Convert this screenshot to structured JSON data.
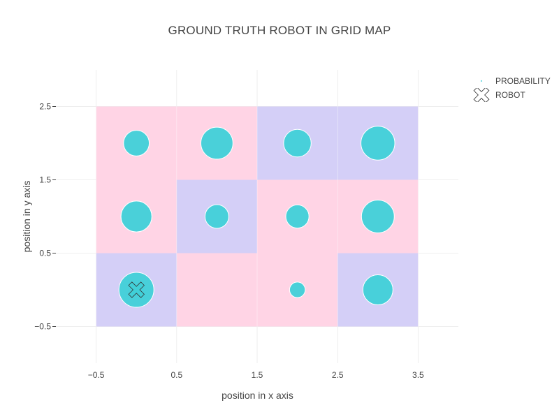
{
  "chart_data": {
    "type": "scatter",
    "title": "GROUND TRUTH ROBOT IN GRID MAP",
    "xlabel": "position in x axis",
    "ylabel": "position in y axis",
    "xlim": [
      -1,
      4
    ],
    "ylim": [
      -1,
      3
    ],
    "xticks": [
      "−0.5",
      "0.5",
      "1.5",
      "2.5",
      "3.5"
    ],
    "xtick_values": [
      -0.5,
      0.5,
      1.5,
      2.5,
      3.5
    ],
    "yticks": [
      "−0.5",
      "0.5",
      "1.5",
      "2.5"
    ],
    "ytick_values": [
      -0.5,
      0.5,
      1.5,
      2.5
    ],
    "grid": true,
    "legend_position": "top-right",
    "cell_colors": {
      "pink": "#ffd4e5",
      "lavender": "#d4cff7"
    },
    "cells": [
      {
        "x": 0,
        "y": 0,
        "color": "lavender"
      },
      {
        "x": 1,
        "y": 0,
        "color": "pink"
      },
      {
        "x": 2,
        "y": 0,
        "color": "pink"
      },
      {
        "x": 3,
        "y": 0,
        "color": "lavender"
      },
      {
        "x": 0,
        "y": 1,
        "color": "pink"
      },
      {
        "x": 1,
        "y": 1,
        "color": "lavender"
      },
      {
        "x": 2,
        "y": 1,
        "color": "pink"
      },
      {
        "x": 3,
        "y": 1,
        "color": "pink"
      },
      {
        "x": 0,
        "y": 2,
        "color": "pink"
      },
      {
        "x": 1,
        "y": 2,
        "color": "pink"
      },
      {
        "x": 2,
        "y": 2,
        "color": "lavender"
      },
      {
        "x": 3,
        "y": 2,
        "color": "lavender"
      }
    ],
    "series": [
      {
        "name": "PROBABILITY",
        "type": "scatter",
        "marker_color": "#40d0d8",
        "points": [
          {
            "x": 0,
            "y": 0,
            "size": 0.1
          },
          {
            "x": 2,
            "y": 0,
            "size": 0.02
          },
          {
            "x": 3,
            "y": 0,
            "size": 0.074
          },
          {
            "x": 0,
            "y": 1,
            "size": 0.078
          },
          {
            "x": 1,
            "y": 1,
            "size": 0.046
          },
          {
            "x": 2,
            "y": 1,
            "size": 0.044
          },
          {
            "x": 3,
            "y": 1,
            "size": 0.088
          },
          {
            "x": 0,
            "y": 2,
            "size": 0.054
          },
          {
            "x": 1,
            "y": 2,
            "size": 0.084
          },
          {
            "x": 2,
            "y": 2,
            "size": 0.062
          },
          {
            "x": 3,
            "y": 2,
            "size": 0.094
          }
        ]
      },
      {
        "name": "ROBOT",
        "type": "marker",
        "symbol": "x",
        "points": [
          {
            "x": 0,
            "y": 0
          }
        ]
      }
    ]
  }
}
